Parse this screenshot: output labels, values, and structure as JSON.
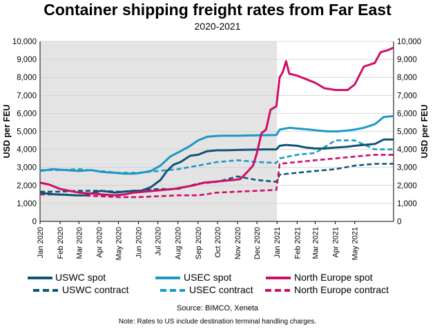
{
  "title": "Container shipping freight rates from Far East",
  "subtitle": "2020-2021",
  "source": "Source: BIMCO, Xeneta",
  "note": "Note: Rates to US include destination terminal handling charges.",
  "colors": {
    "uswc": "#0e5475",
    "usec": "#1b97c6",
    "neur": "#cf0d68",
    "shade": "#e4e4e4",
    "grid": "#cfcfcf"
  },
  "chart_data": {
    "type": "line",
    "title": "Container shipping freight rates from Far East",
    "subtitle": "2020-2021",
    "ylabel": "USD per FEU",
    "ylabel_right": "USD per FEU",
    "ylim": [
      0,
      10000
    ],
    "xlim": [
      "2020-01-01",
      "2021-06-30"
    ],
    "yticks": [
      "0",
      "1,000",
      "2,000",
      "3,000",
      "4,000",
      "5,000",
      "6,000",
      "7,000",
      "8,000",
      "9,000",
      "10,000"
    ],
    "xticks": [
      "Jan 2020",
      "Feb 2020",
      "Mar 2020",
      "Apr 2020",
      "May 2020",
      "Jun 2020",
      "Jul 2020",
      "Aug 2020",
      "Sep 2020",
      "Oct 2020",
      "Nov 2020",
      "Dec 2020",
      "Jan 2021",
      "Feb 2021",
      "Mar 2021",
      "Apr 2021",
      "May 2021"
    ],
    "shaded_range": [
      "2020-01-01",
      "2021-01-01"
    ],
    "grid": true,
    "legend_position": "bottom",
    "series": [
      {
        "name": "USWC spot",
        "key": "uswc",
        "style": "solid",
        "x": [
          "2020-01-01",
          "2020-01-10",
          "2020-01-25",
          "2020-02-10",
          "2020-02-25",
          "2020-03-10",
          "2020-03-25",
          "2020-04-05",
          "2020-04-25",
          "2020-05-10",
          "2020-05-25",
          "2020-06-05",
          "2020-06-20",
          "2020-07-05",
          "2020-07-15",
          "2020-07-25",
          "2020-08-05",
          "2020-08-20",
          "2020-09-01",
          "2020-09-15",
          "2020-10-01",
          "2020-10-15",
          "2020-11-01",
          "2020-11-15",
          "2020-12-01",
          "2020-12-15",
          "2020-12-31",
          "2021-01-05",
          "2021-01-15",
          "2021-02-01",
          "2021-02-15",
          "2021-03-01",
          "2021-03-15",
          "2021-04-01",
          "2021-04-20",
          "2021-05-01",
          "2021-05-15",
          "2021-06-01",
          "2021-06-15",
          "2021-06-30"
        ],
        "y": [
          1600,
          1550,
          1500,
          1480,
          1450,
          1450,
          1600,
          1700,
          1600,
          1650,
          1700,
          1700,
          1900,
          2300,
          2800,
          3150,
          3300,
          3650,
          3700,
          3900,
          3950,
          3950,
          3970,
          3980,
          3990,
          4000,
          4000,
          4200,
          4250,
          4200,
          4100,
          4050,
          4050,
          4100,
          4150,
          4200,
          4250,
          4300,
          4550,
          4550
        ]
      },
      {
        "name": "USEC spot",
        "key": "usec",
        "style": "solid",
        "x": [
          "2020-01-01",
          "2020-01-20",
          "2020-02-10",
          "2020-03-01",
          "2020-03-20",
          "2020-04-05",
          "2020-04-25",
          "2020-05-10",
          "2020-05-25",
          "2020-06-05",
          "2020-06-20",
          "2020-07-05",
          "2020-07-20",
          "2020-08-05",
          "2020-08-20",
          "2020-09-01",
          "2020-09-15",
          "2020-10-01",
          "2020-10-15",
          "2020-11-01",
          "2020-11-15",
          "2020-12-01",
          "2020-12-15",
          "2020-12-31",
          "2021-01-05",
          "2021-01-20",
          "2021-02-05",
          "2021-02-20",
          "2021-03-05",
          "2021-03-20",
          "2021-04-05",
          "2021-04-20",
          "2021-05-01",
          "2021-05-15",
          "2021-06-01",
          "2021-06-15",
          "2021-06-30"
        ],
        "y": [
          2800,
          2900,
          2850,
          2800,
          2850,
          2750,
          2700,
          2650,
          2650,
          2700,
          2800,
          3100,
          3600,
          3900,
          4200,
          4500,
          4700,
          4750,
          4760,
          4760,
          4770,
          4780,
          4790,
          4800,
          5100,
          5200,
          5150,
          5100,
          5050,
          5000,
          5000,
          5050,
          5100,
          5200,
          5400,
          5800,
          5850
        ]
      },
      {
        "name": "North Europe spot",
        "key": "neur",
        "style": "solid",
        "x": [
          "2020-01-01",
          "2020-01-15",
          "2020-02-01",
          "2020-02-15",
          "2020-03-01",
          "2020-03-20",
          "2020-04-05",
          "2020-04-25",
          "2020-05-10",
          "2020-05-25",
          "2020-06-10",
          "2020-06-25",
          "2020-07-10",
          "2020-07-25",
          "2020-08-10",
          "2020-08-25",
          "2020-09-10",
          "2020-09-25",
          "2020-10-10",
          "2020-10-25",
          "2020-11-05",
          "2020-11-15",
          "2020-11-25",
          "2020-12-01",
          "2020-12-08",
          "2020-12-15",
          "2020-12-22",
          "2020-12-31",
          "2021-01-05",
          "2021-01-10",
          "2021-01-15",
          "2021-01-20",
          "2021-02-01",
          "2021-02-15",
          "2021-03-01",
          "2021-03-15",
          "2021-04-01",
          "2021-04-20",
          "2021-05-01",
          "2021-05-15",
          "2021-06-01",
          "2021-06-10",
          "2021-06-20",
          "2021-06-30"
        ],
        "y": [
          2150,
          2050,
          1800,
          1700,
          1600,
          1550,
          1500,
          1450,
          1500,
          1600,
          1650,
          1700,
          1750,
          1800,
          1900,
          2000,
          2150,
          2200,
          2250,
          2300,
          2350,
          2700,
          3100,
          3800,
          4900,
          5100,
          6200,
          6400,
          8000,
          8300,
          8900,
          8200,
          8100,
          7900,
          7700,
          7400,
          7300,
          7300,
          7600,
          8600,
          8800,
          9400,
          9500,
          9650
        ]
      },
      {
        "name": "USWC contract",
        "key": "uswc",
        "style": "dashed",
        "x": [
          "2020-01-01",
          "2020-02-01",
          "2020-03-01",
          "2020-04-01",
          "2020-05-01",
          "2020-06-01",
          "2020-07-01",
          "2020-08-01",
          "2020-09-01",
          "2020-10-01",
          "2020-11-01",
          "2020-12-01",
          "2020-12-31",
          "2021-01-05",
          "2021-02-01",
          "2021-03-01",
          "2021-04-01",
          "2021-05-01",
          "2021-06-01",
          "2021-06-30"
        ],
        "y": [
          1650,
          1650,
          1700,
          1700,
          1650,
          1700,
          1800,
          1800,
          2100,
          2200,
          2500,
          2300,
          2200,
          2600,
          2700,
          2800,
          2900,
          3100,
          3200,
          3200
        ]
      },
      {
        "name": "USEC contract",
        "key": "usec",
        "style": "dashed",
        "x": [
          "2020-01-01",
          "2020-02-01",
          "2020-03-01",
          "2020-04-01",
          "2020-05-01",
          "2020-06-01",
          "2020-07-01",
          "2020-08-01",
          "2020-09-01",
          "2020-10-01",
          "2020-11-01",
          "2020-12-01",
          "2020-12-31",
          "2021-01-05",
          "2021-02-01",
          "2021-03-01",
          "2021-04-01",
          "2021-05-01",
          "2021-06-01",
          "2021-06-30"
        ],
        "y": [
          2850,
          2850,
          2900,
          2800,
          2700,
          2700,
          2800,
          2900,
          3100,
          3300,
          3400,
          3300,
          3250,
          3500,
          3700,
          3800,
          4500,
          4500,
          4000,
          4000
        ]
      },
      {
        "name": "North Europe contract",
        "key": "neur",
        "style": "dashed",
        "x": [
          "2020-01-01",
          "2020-02-01",
          "2020-03-01",
          "2020-04-01",
          "2020-05-01",
          "2020-06-01",
          "2020-07-01",
          "2020-08-01",
          "2020-09-01",
          "2020-10-01",
          "2020-11-01",
          "2020-12-01",
          "2020-12-31",
          "2021-01-05",
          "2021-02-01",
          "2021-03-01",
          "2021-04-01",
          "2021-05-01",
          "2021-06-01",
          "2021-06-30"
        ],
        "y": [
          1500,
          1500,
          1450,
          1400,
          1350,
          1350,
          1400,
          1450,
          1450,
          1600,
          1650,
          1700,
          1750,
          3200,
          3300,
          3400,
          3500,
          3600,
          3700,
          3700
        ]
      }
    ]
  }
}
